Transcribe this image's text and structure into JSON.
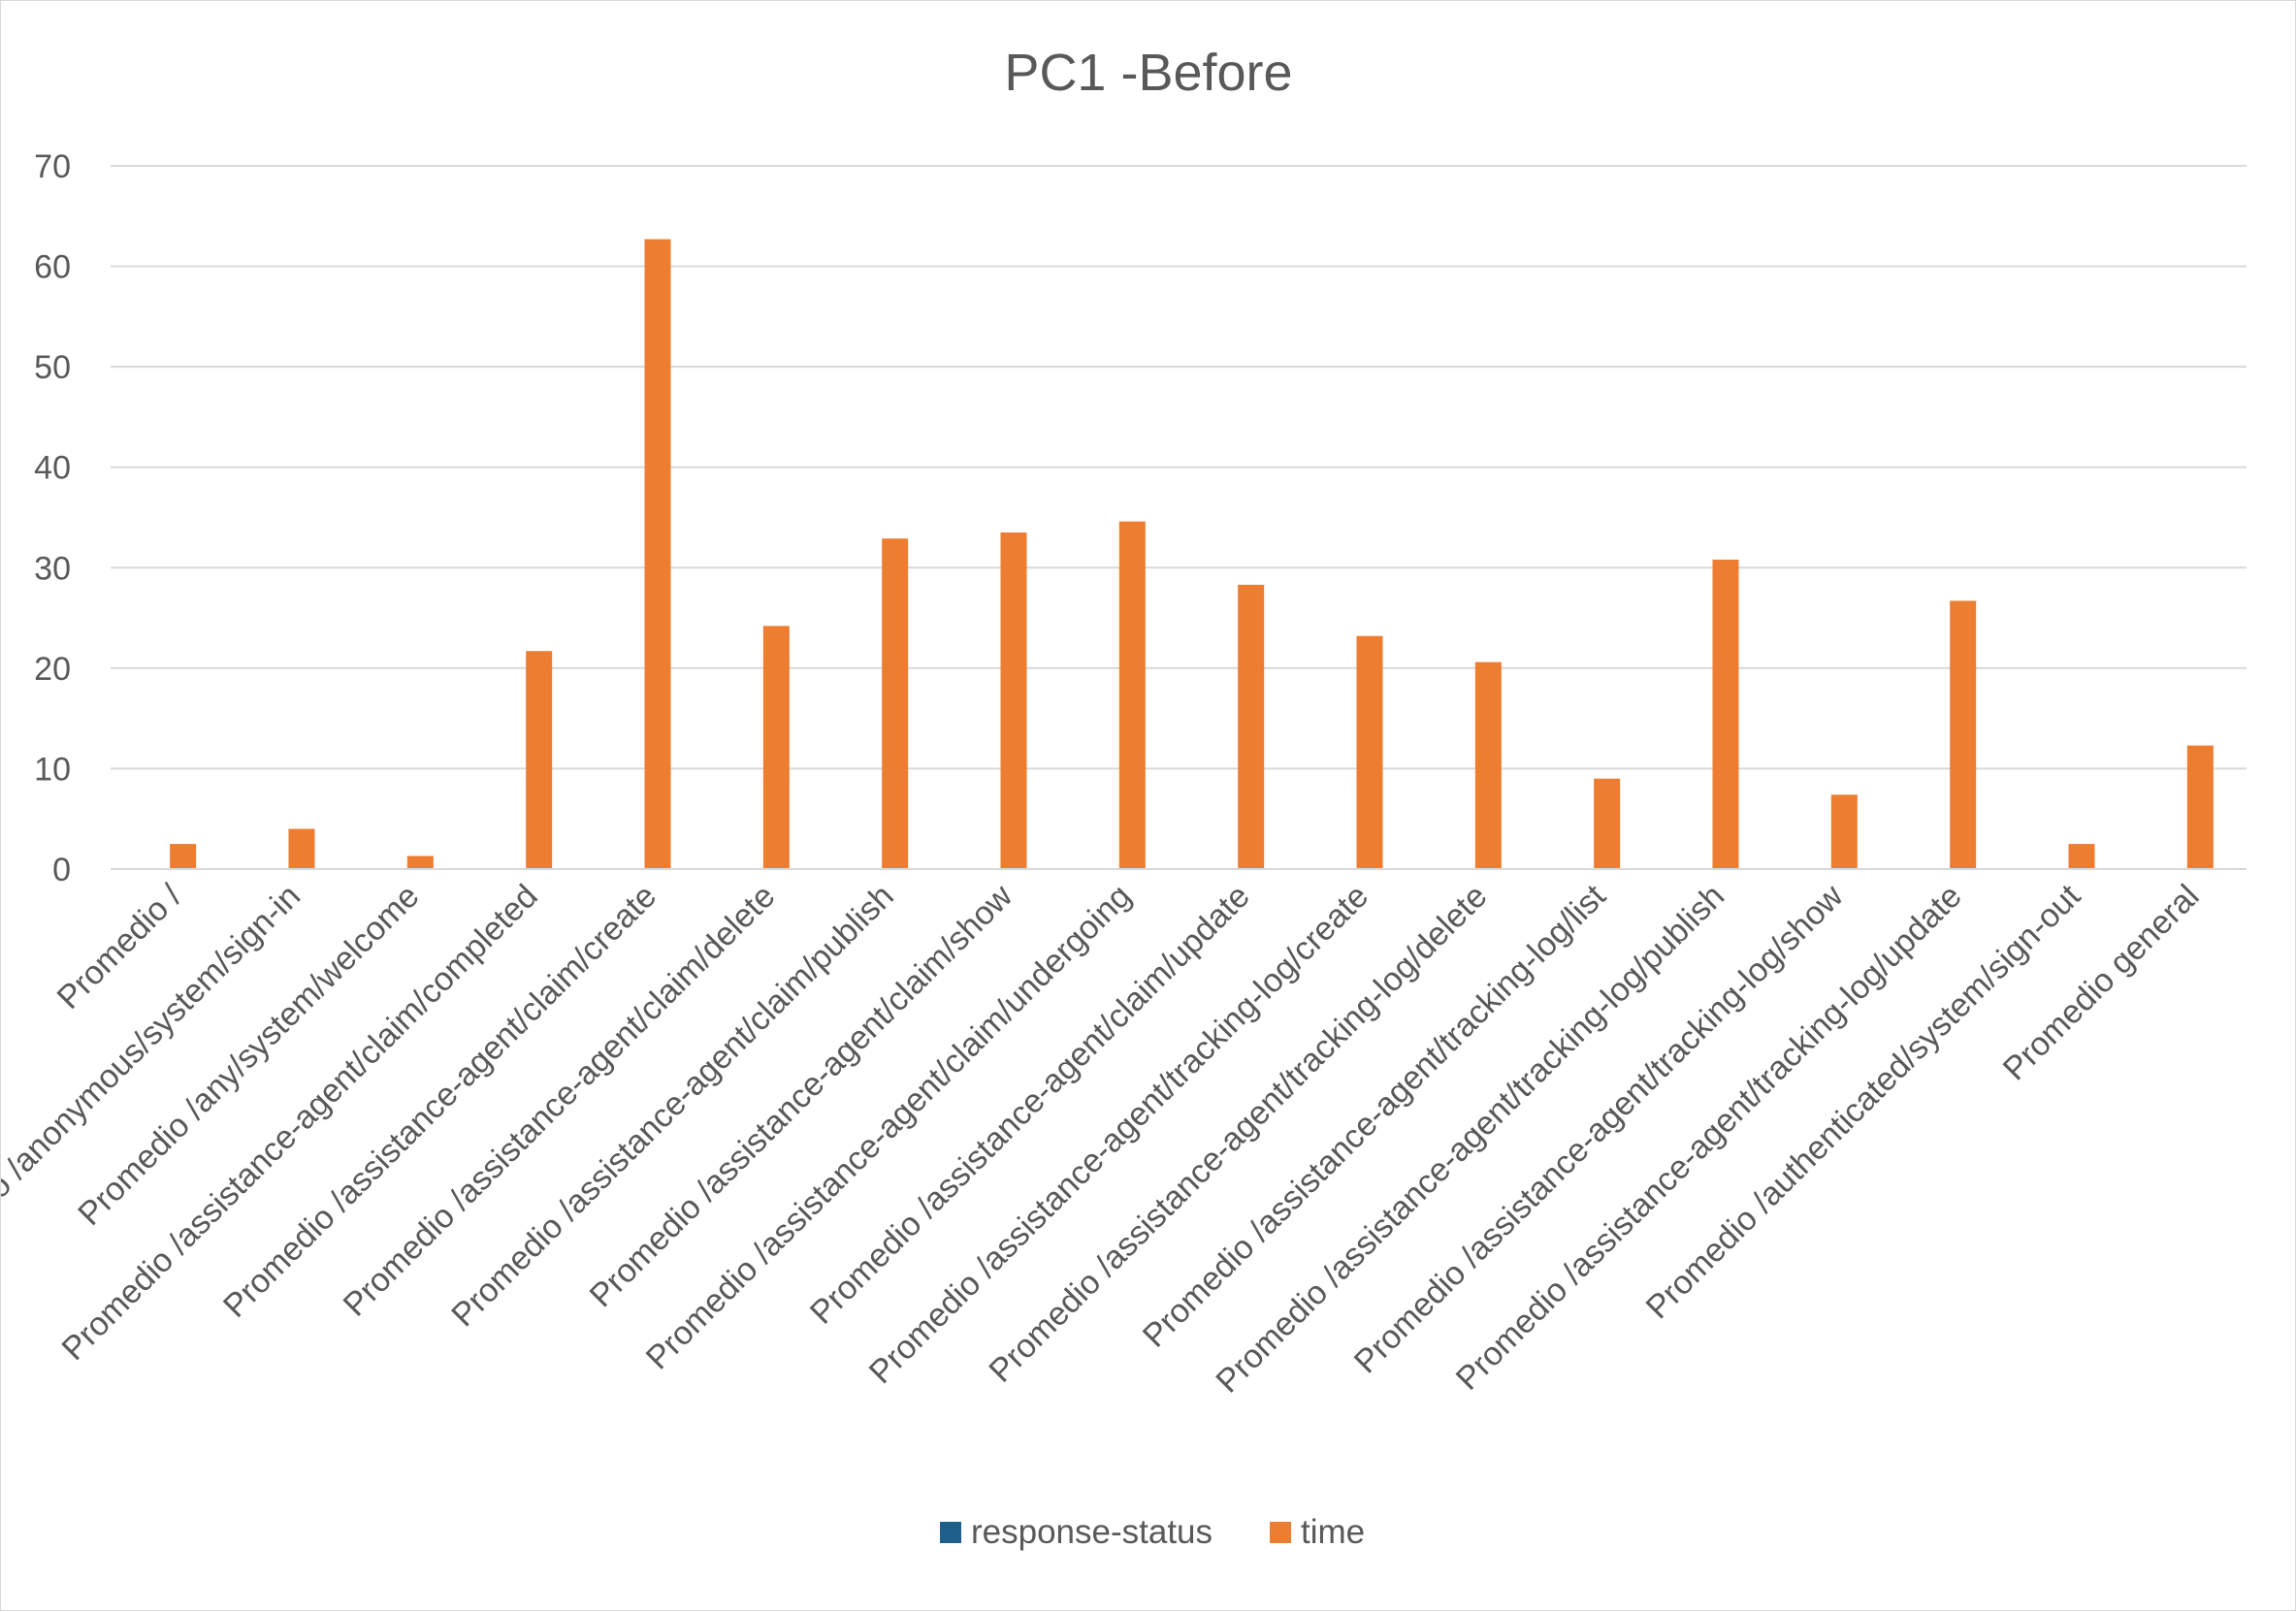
{
  "chart_data": {
    "type": "bar",
    "title": "PC1 -Before",
    "xlabel": "",
    "ylabel": "",
    "ylim": [
      0,
      70
    ],
    "yticks": [
      0,
      10,
      20,
      30,
      40,
      50,
      60,
      70
    ],
    "grid": true,
    "legend_position": "bottom",
    "categories": [
      "Promedio /",
      "Promedio /anonymous/system/sign-in",
      "Promedio /any/system/welcome",
      "Promedio /assistance-agent/claim/completed",
      "Promedio /assistance-agent/claim/create",
      "Promedio /assistance-agent/claim/delete",
      "Promedio /assistance-agent/claim/publish",
      "Promedio /assistance-agent/claim/show",
      "Promedio /assistance-agent/claim/undergoing",
      "Promedio /assistance-agent/claim/update",
      "Promedio /assistance-agent/tracking-log/create",
      "Promedio /assistance-agent/tracking-log/delete",
      "Promedio /assistance-agent/tracking-log/list",
      "Promedio /assistance-agent/tracking-log/publish",
      "Promedio /assistance-agent/tracking-log/show",
      "Promedio /assistance-agent/tracking-log/update",
      "Promedio /authenticated/system/sign-out",
      "Promedio general"
    ],
    "series": [
      {
        "name": "response-status",
        "color": "#1f5f8b",
        "values": [
          0,
          0,
          0,
          0,
          0,
          0,
          0,
          0,
          0,
          0,
          0,
          0,
          0,
          0,
          0,
          0,
          0,
          0
        ]
      },
      {
        "name": "time",
        "color": "#ed7d31",
        "values": [
          2.5,
          4.0,
          1.3,
          21.7,
          62.7,
          24.2,
          32.9,
          33.5,
          34.6,
          28.3,
          23.2,
          20.6,
          9.0,
          30.8,
          7.4,
          26.7,
          2.5,
          12.3
        ]
      }
    ]
  }
}
